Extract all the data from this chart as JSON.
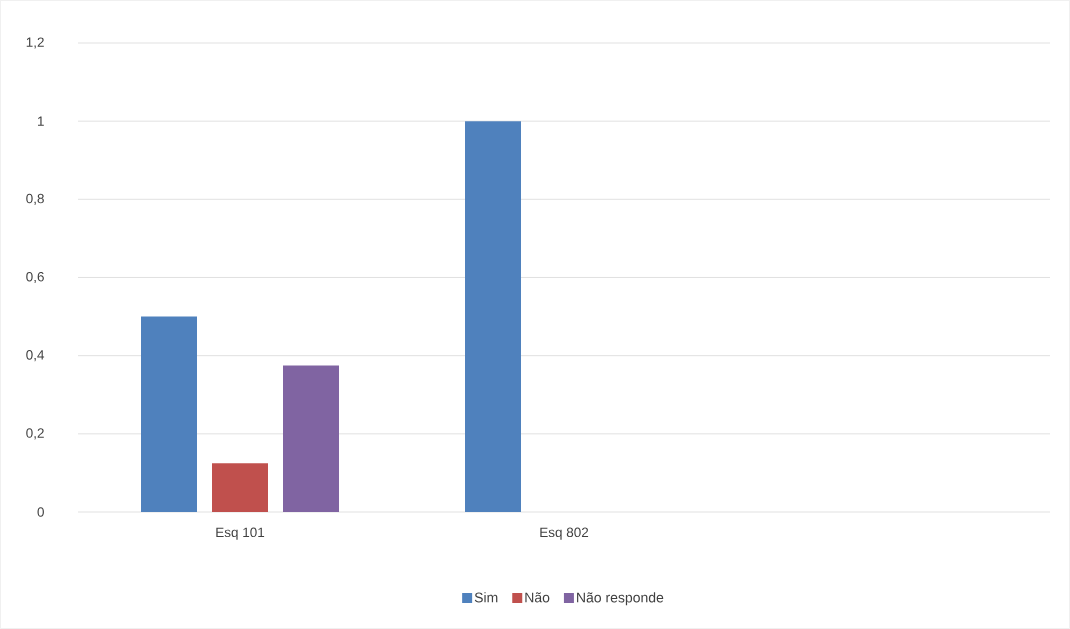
{
  "chart_data": {
    "type": "bar",
    "categories": [
      "Esq 101",
      "Esq 802",
      null
    ],
    "series": [
      {
        "name": "Sim",
        "color": "#4f81bd",
        "values": [
          0.5,
          1,
          null
        ]
      },
      {
        "name": "Não",
        "color": "#c0504d",
        "values": [
          0.125,
          0,
          null
        ]
      },
      {
        "name": "Não responde",
        "color": "#8064a2",
        "values": [
          0.375,
          0,
          null
        ]
      }
    ],
    "ylim": [
      0,
      1.2
    ],
    "yticks": [
      {
        "value": 0,
        "label": "0"
      },
      {
        "value": 0.2,
        "label": "0,2"
      },
      {
        "value": 0.4,
        "label": "0,4"
      },
      {
        "value": 0.6,
        "label": "0,6"
      },
      {
        "value": 0.8,
        "label": "0,8"
      },
      {
        "value": 1,
        "label": "1"
      },
      {
        "value": 1.2,
        "label": "1,2"
      }
    ],
    "grid": "y",
    "legend": "bottom"
  }
}
